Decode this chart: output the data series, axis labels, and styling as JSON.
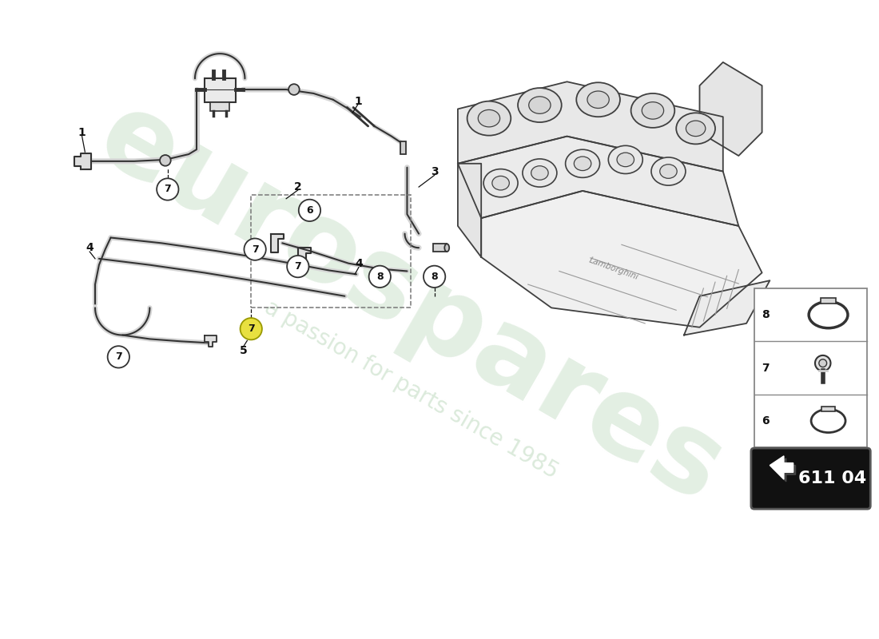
{
  "background_color": "#ffffff",
  "watermark_text1": "eurospares",
  "watermark_text2": "a passion for parts since 1985",
  "watermark_color": "#c8dfc8",
  "part_number": "611 04",
  "dc": "#333333",
  "lc": "#444444",
  "label_color": "#111111",
  "yellow_circle_color": "#e8e040",
  "legend_border_color": "#aaaaaa"
}
